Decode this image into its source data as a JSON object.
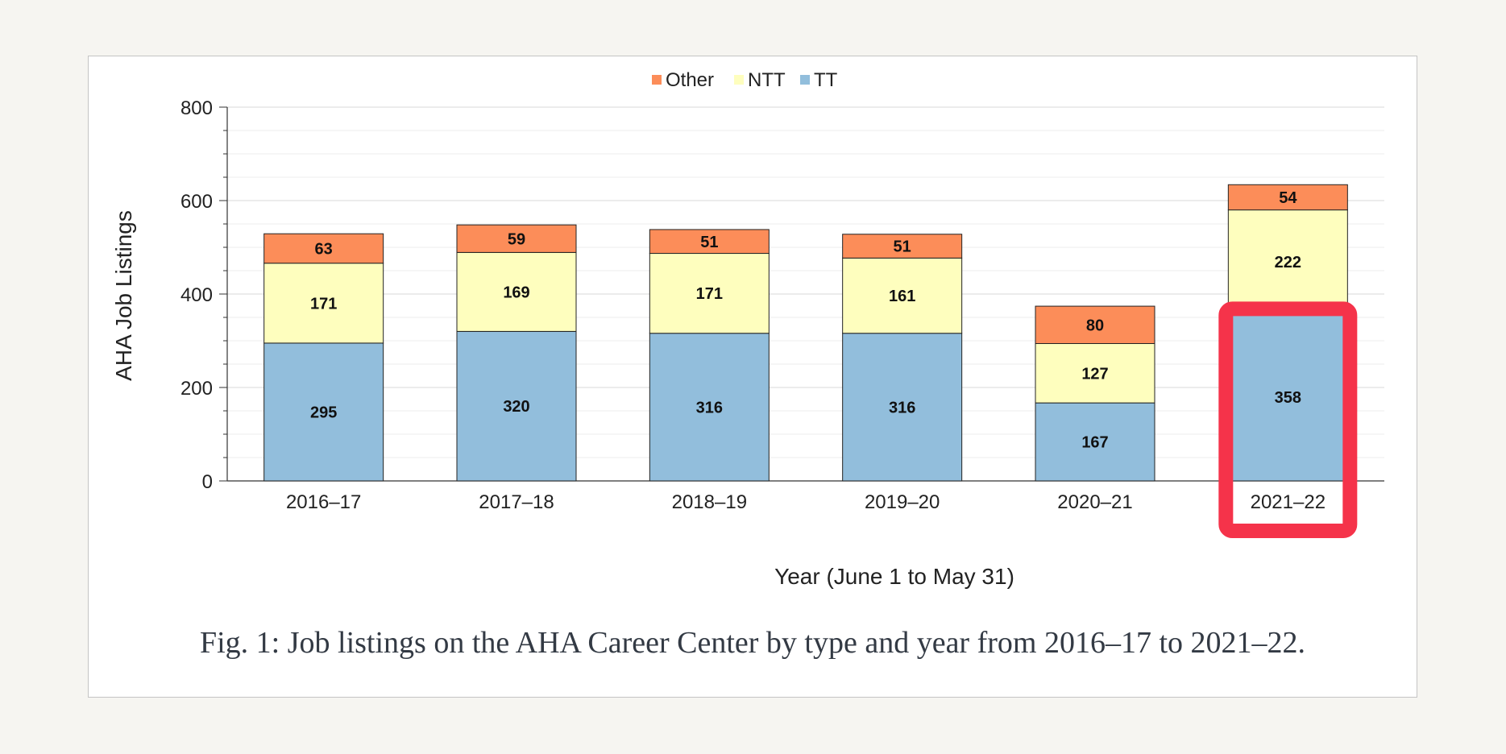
{
  "chart_data": {
    "type": "bar",
    "stacked": true,
    "categories": [
      "2016–17",
      "2017–18",
      "2018–19",
      "2019–20",
      "2020–21",
      "2021–22"
    ],
    "series": [
      {
        "name": "TT",
        "color": "#92bedc",
        "values": [
          295,
          320,
          316,
          316,
          167,
          358
        ]
      },
      {
        "name": "NTT",
        "color": "#fefebe",
        "values": [
          171,
          169,
          171,
          161,
          127,
          222
        ]
      },
      {
        "name": "Other",
        "color": "#fc8d59",
        "values": [
          63,
          59,
          51,
          51,
          80,
          54
        ]
      }
    ],
    "legend_order": [
      "Other",
      "NTT",
      "TT"
    ],
    "legend_position": "top",
    "xlabel": "Year (June 1 to May 31)",
    "ylabel": "AHA Job Listings",
    "ylim": [
      0,
      800
    ],
    "yticks": [
      0,
      200,
      400,
      600,
      800
    ],
    "grid": true,
    "highlight": {
      "category": "2021–22",
      "color": "#f5334a"
    }
  },
  "caption": "Fig. 1: Job listings on the AHA Career Center by type and year from 2016–17 to 2021–22."
}
